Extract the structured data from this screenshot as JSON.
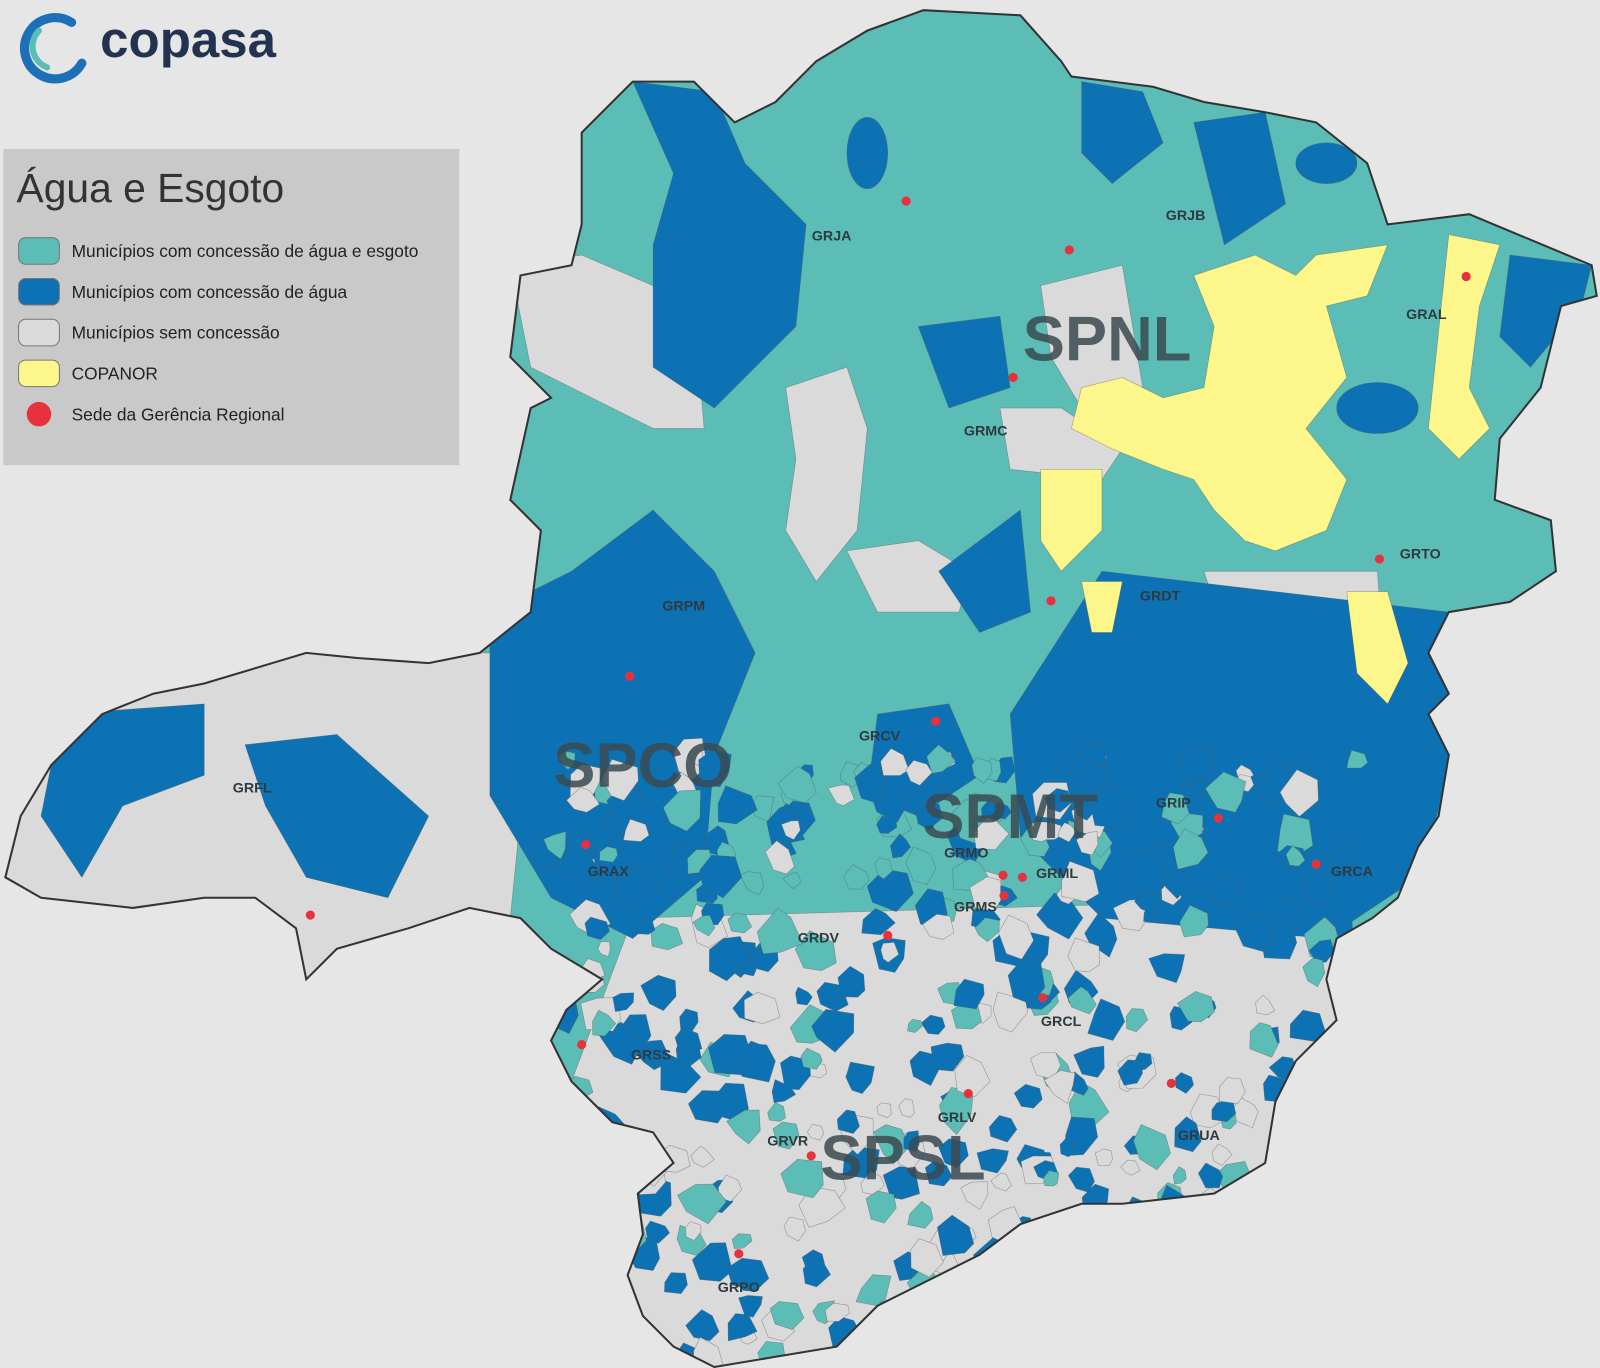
{
  "header": {
    "logo": "copasa"
  },
  "legend": {
    "title": "Água e Esgoto",
    "items": [
      {
        "label": "Municípios com concessão de água e esgoto",
        "color": "#5bbdb6"
      },
      {
        "label": "Municípios com concessão de água",
        "color": "#0d72b4"
      },
      {
        "label": "Municípios sem concessão",
        "color": "#dadada"
      },
      {
        "label": "COPANOR",
        "color": "#fdf68a"
      },
      {
        "label": "Sede da Gerência Regional",
        "color": "#e5323c"
      }
    ]
  },
  "map": {
    "superintendencies": [
      "SPNL",
      "SPCO",
      "SPMT",
      "SPSL"
    ],
    "regional_offices": [
      "GRJA",
      "GRJB",
      "GRAL",
      "GRMC",
      "GRTO",
      "GRDT",
      "GRPM",
      "GRCV",
      "GRFL",
      "GRAX",
      "GRIP",
      "GRCA",
      "GRMO",
      "GRML",
      "GRMS",
      "GRDV",
      "GRCL",
      "GRSS",
      "GRLV",
      "GRVR",
      "GRUA",
      "GRPO"
    ]
  }
}
